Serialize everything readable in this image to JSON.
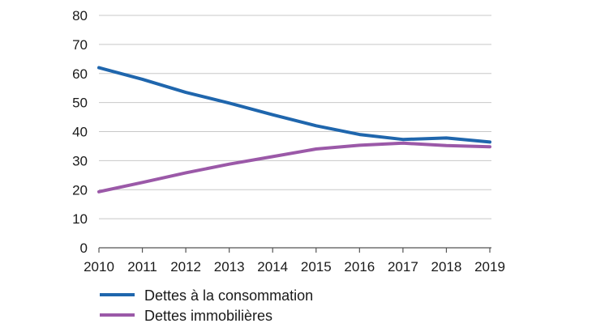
{
  "chart_data": {
    "type": "line",
    "title": "",
    "xlabel": "",
    "ylabel": "",
    "x": [
      "2010",
      "2011",
      "2012",
      "2013",
      "2014",
      "2015",
      "2016",
      "2017",
      "2018",
      "2019"
    ],
    "ylim": [
      0,
      80
    ],
    "yticks": [
      0,
      10,
      20,
      30,
      40,
      50,
      60,
      70,
      80
    ],
    "grid": true,
    "legend_position": "bottom-left",
    "series": [
      {
        "name": "Dettes à la consommation",
        "color": "#1f66ad",
        "values": [
          62,
          58,
          53.5,
          49.8,
          45.8,
          42,
          39,
          37.3,
          37.8,
          36.4
        ]
      },
      {
        "name": "Dettes immobilières",
        "color": "#9b59a8",
        "values": [
          19.3,
          22.5,
          25.8,
          28.8,
          31.4,
          34,
          35.3,
          36,
          35.2,
          34.8
        ]
      }
    ]
  }
}
